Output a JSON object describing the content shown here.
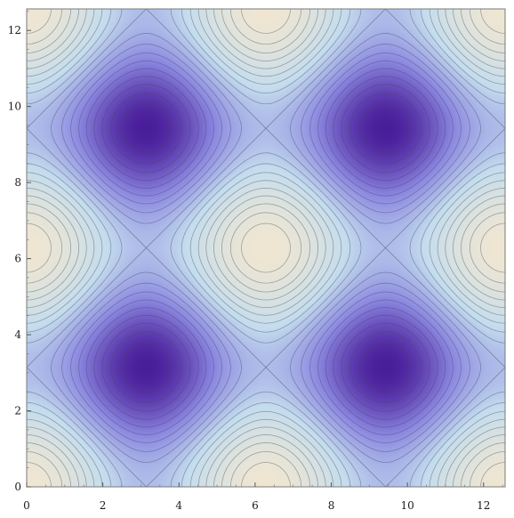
{
  "chart_data": {
    "type": "contour",
    "function": "cos(x) + cos(y)",
    "xlim": [
      0,
      12.566
    ],
    "ylim": [
      0,
      12.566
    ],
    "xticks": [
      0,
      2,
      4,
      6,
      8,
      10,
      12
    ],
    "yticks": [
      0,
      2,
      4,
      6,
      8,
      10,
      12
    ],
    "xtick_labels": [
      "0",
      "2",
      "4",
      "6",
      "8",
      "10",
      "12"
    ],
    "ytick_labels": [
      "0",
      "2",
      "4",
      "6",
      "8",
      "10",
      "12"
    ],
    "contour_levels": [
      -1.8,
      -1.6,
      -1.4,
      -1.2,
      -1.0,
      -0.8,
      -0.6,
      -0.4,
      -0.2,
      0,
      0.2,
      0.4,
      0.6,
      0.8,
      1.0,
      1.2,
      1.4,
      1.6,
      1.8
    ],
    "value_range": [
      -2,
      2
    ],
    "colormap": {
      "low": "#4a1d9a",
      "mid_low": "#8a86e0",
      "mid": "#c4ddee",
      "high": "#efe6d2"
    },
    "minima": [
      [
        3.1416,
        3.1416
      ],
      [
        9.4248,
        3.1416
      ],
      [
        3.1416,
        9.4248
      ],
      [
        9.4248,
        9.4248
      ]
    ],
    "maxima": [
      [
        0,
        0
      ],
      [
        6.2832,
        0
      ],
      [
        12.566,
        0
      ],
      [
        0,
        6.2832
      ],
      [
        6.2832,
        6.2832
      ],
      [
        12.566,
        6.2832
      ],
      [
        0,
        12.566
      ],
      [
        6.2832,
        12.566
      ],
      [
        12.566,
        12.566
      ]
    ],
    "grid": false,
    "legend": "none",
    "title": "",
    "xlabel": "",
    "ylabel": ""
  }
}
